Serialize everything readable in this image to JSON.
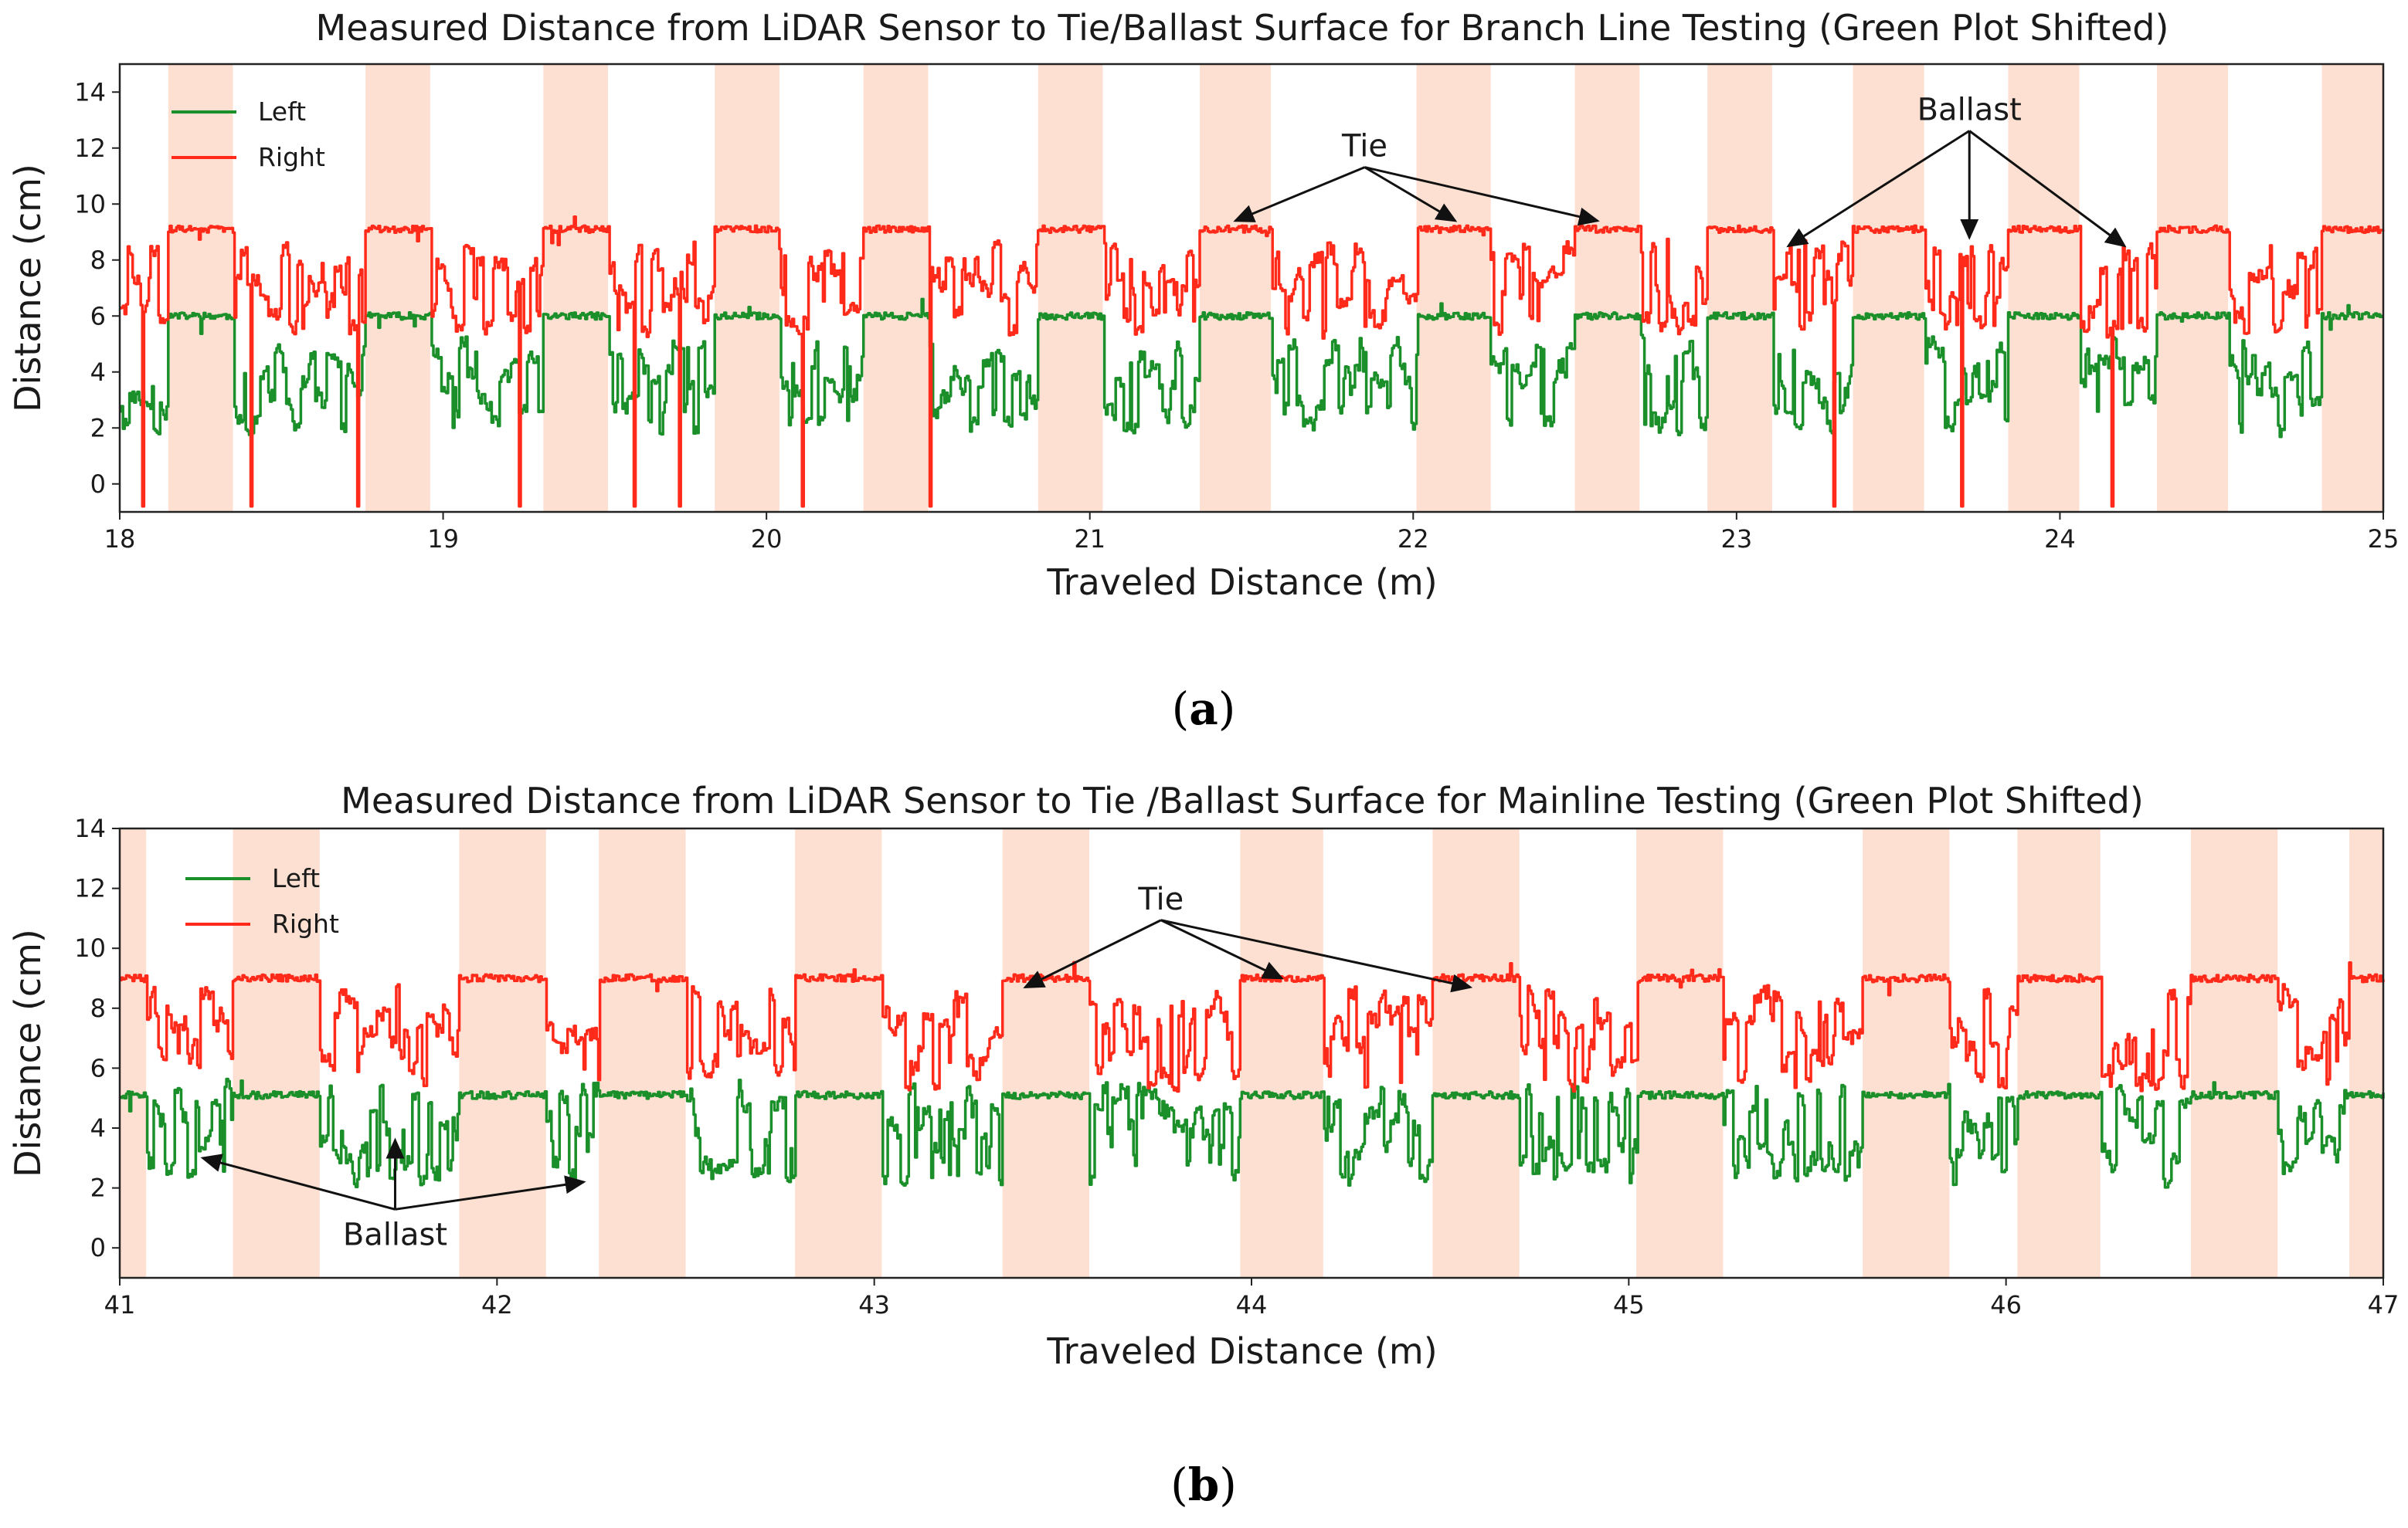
{
  "colors": {
    "left": "#1a8f2a",
    "right": "#ff2a1a",
    "band": "#fde0d2",
    "axis": "#222222"
  },
  "chart_data": [
    {
      "id": "a",
      "type": "line",
      "caption_label": "a",
      "title": "Measured Distance from LiDAR Sensor to Tie/Ballast Surface for Branch Line Testing (Green Plot Shifted)",
      "xlabel": "Traveled Distance (m)",
      "ylabel": "Distance (cm)",
      "xlim": [
        18,
        25
      ],
      "ylim": [
        -1,
        15
      ],
      "xticks": [
        "18",
        "19",
        "20",
        "21",
        "22",
        "23",
        "24",
        "25"
      ],
      "yticks": [
        "0",
        "2",
        "4",
        "6",
        "8",
        "10",
        "12",
        "14"
      ],
      "legend": {
        "position": "top-left",
        "entries": [
          "Left",
          "Right"
        ]
      },
      "tie_regions": [
        [
          18.15,
          18.35
        ],
        [
          18.76,
          18.96
        ],
        [
          19.31,
          19.51
        ],
        [
          19.84,
          20.04
        ],
        [
          20.3,
          20.5
        ],
        [
          20.84,
          21.04
        ],
        [
          21.34,
          21.56
        ],
        [
          22.01,
          22.24
        ],
        [
          22.5,
          22.7
        ],
        [
          22.91,
          23.11
        ],
        [
          23.36,
          23.58
        ],
        [
          23.84,
          24.06
        ],
        [
          24.3,
          24.52
        ],
        [
          24.81,
          25.0
        ]
      ],
      "left_tie_level": 6.0,
      "left_ballast_level": 3.5,
      "right_tie_level": 9.1,
      "right_ballast_level": 7.0,
      "annotations": [
        {
          "text": "Tie",
          "x": 21.85,
          "y": 11.7,
          "targets": [
            [
              21.45,
              9.4
            ],
            [
              22.13,
              9.4
            ],
            [
              22.57,
              9.4
            ]
          ]
        },
        {
          "text": "Ballast",
          "x": 23.72,
          "y": 13.0,
          "targets": [
            [
              23.16,
              8.5
            ],
            [
              23.72,
              8.8
            ],
            [
              24.2,
              8.5
            ]
          ]
        }
      ]
    },
    {
      "id": "b",
      "type": "line",
      "caption_label": "b",
      "title": "Measured Distance from LiDAR Sensor to Tie /Ballast Surface for Mainline Testing (Green Plot Shifted)",
      "xlabel": "Traveled Distance (m)",
      "ylabel": "Distance (cm)",
      "xlim": [
        41,
        47
      ],
      "ylim": [
        -1,
        14
      ],
      "xticks": [
        "41",
        "42",
        "43",
        "44",
        "45",
        "46",
        "47"
      ],
      "yticks": [
        "0",
        "2",
        "4",
        "6",
        "8",
        "10",
        "12",
        "14"
      ],
      "legend": {
        "position": "top-left",
        "entries": [
          "Left",
          "Right"
        ]
      },
      "tie_regions": [
        [
          41.0,
          41.07
        ],
        [
          41.3,
          41.53
        ],
        [
          41.9,
          42.13
        ],
        [
          42.27,
          42.5
        ],
        [
          42.79,
          43.02
        ],
        [
          43.34,
          43.57
        ],
        [
          43.97,
          44.19
        ],
        [
          44.48,
          44.71
        ],
        [
          45.02,
          45.25
        ],
        [
          45.62,
          45.85
        ],
        [
          46.03,
          46.25
        ],
        [
          46.49,
          46.72
        ],
        [
          46.91,
          47.0
        ]
      ],
      "left_tie_level": 5.1,
      "left_ballast_level": 3.8,
      "right_tie_level": 9.0,
      "right_ballast_level": 7.0,
      "annotations": [
        {
          "text": "Tie",
          "x": 43.76,
          "y": 11.3,
          "targets": [
            [
              43.4,
              8.7
            ],
            [
              44.08,
              9.0
            ],
            [
              44.58,
              8.7
            ]
          ]
        },
        {
          "text": "Ballast",
          "x": 41.73,
          "y": 0.1,
          "targets": [
            [
              41.22,
              3.0
            ],
            [
              41.73,
              3.6
            ],
            [
              42.23,
              2.2
            ]
          ]
        }
      ]
    }
  ]
}
